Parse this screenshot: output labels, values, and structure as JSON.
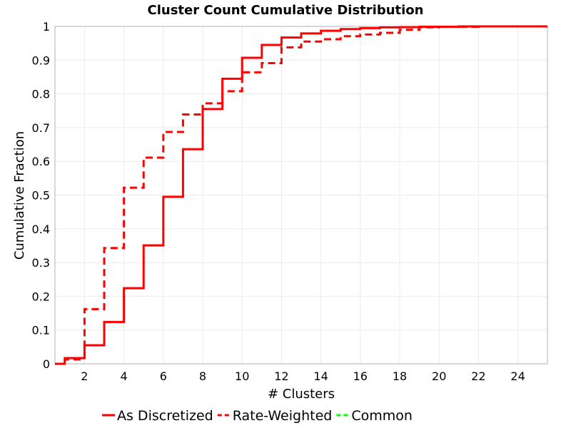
{
  "chart_data": {
    "type": "line",
    "step": true,
    "title": "Cluster Count Cumulative Distribution",
    "xlabel": "# Clusters",
    "ylabel": "Cumulative Fraction",
    "xlim": [
      0.5,
      25.5
    ],
    "ylim": [
      0,
      1
    ],
    "xticks": [
      2,
      4,
      6,
      8,
      10,
      12,
      14,
      16,
      18,
      20,
      22,
      24
    ],
    "xtick_labels": [
      "2",
      "4",
      "6",
      "8",
      "10",
      "12",
      "14",
      "16",
      "18",
      "20",
      "22",
      "24"
    ],
    "yticks": [
      0,
      0.1,
      0.2,
      0.3,
      0.4,
      0.5,
      0.6,
      0.7,
      0.8,
      0.9,
      1
    ],
    "ytick_labels": [
      "0",
      "0.1",
      "0.2",
      "0.3",
      "0.4",
      "0.5",
      "0.6",
      "0.7",
      "0.8",
      "0.9",
      "1"
    ],
    "grid": true,
    "legend_position": "bottom",
    "series": [
      {
        "name": "As Discretized",
        "color": "#ff0000",
        "dash": "solid",
        "x": [
          0.5,
          1,
          2,
          3,
          4,
          5,
          6,
          7,
          8,
          9,
          10,
          11,
          12,
          13,
          14,
          15,
          16,
          17,
          18,
          19,
          20,
          21,
          22,
          23,
          24,
          25,
          25.5
        ],
        "y": [
          0,
          0.017,
          0.055,
          0.124,
          0.224,
          0.351,
          0.495,
          0.636,
          0.755,
          0.845,
          0.907,
          0.945,
          0.967,
          0.979,
          0.987,
          0.992,
          0.995,
          0.997,
          0.998,
          0.999,
          0.999,
          1,
          1,
          1,
          1,
          1,
          1
        ]
      },
      {
        "name": "Rate-Weighted",
        "color": "#ff0000",
        "dash": "dashed",
        "x": [
          0.5,
          1,
          2,
          3,
          4,
          5,
          6,
          7,
          8,
          9,
          10,
          11,
          12,
          13,
          14,
          15,
          16,
          17,
          18,
          19,
          20,
          21,
          22,
          23,
          24,
          25,
          25.5
        ],
        "y": [
          0,
          0.013,
          0.162,
          0.343,
          0.522,
          0.611,
          0.687,
          0.739,
          0.772,
          0.808,
          0.864,
          0.891,
          0.938,
          0.955,
          0.962,
          0.971,
          0.976,
          0.981,
          0.99,
          0.997,
          0.999,
          0.999,
          1,
          1,
          1,
          1,
          1
        ]
      },
      {
        "name": "Common",
        "color": "#00ff00",
        "dash": "dashed",
        "x": [],
        "y": []
      }
    ]
  }
}
